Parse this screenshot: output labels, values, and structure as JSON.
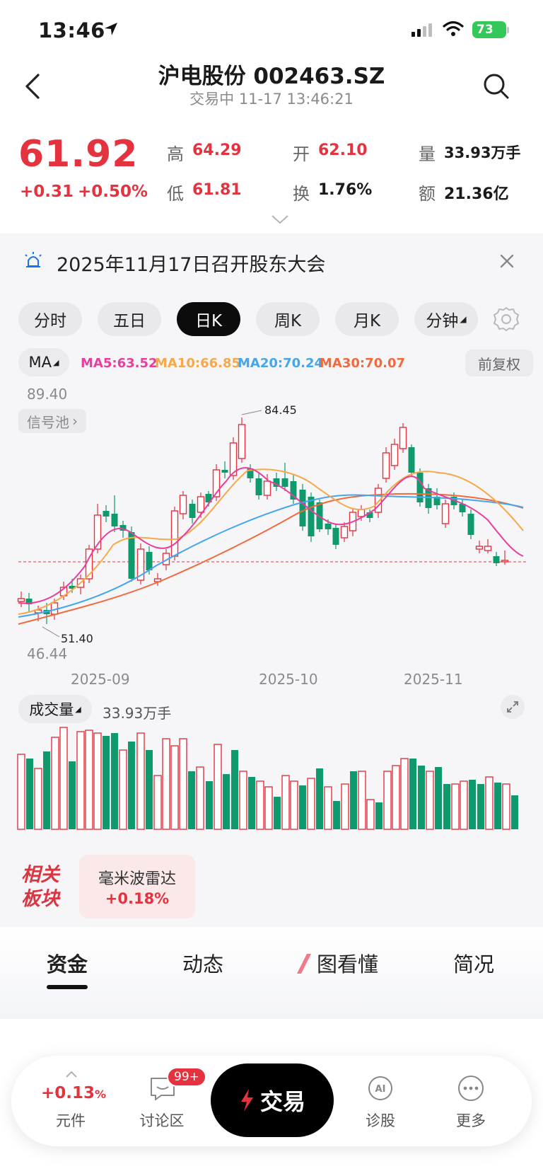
{
  "status_bar": {
    "time": "13:46",
    "battery": "73"
  },
  "header": {
    "title": "沪电股份 002463.SZ",
    "subtitle": "交易中 11-17 13:46:21"
  },
  "quote": {
    "price": "61.92",
    "change": "+0.31",
    "change_pct": "+0.50%",
    "high_label": "高",
    "high": "64.29",
    "open_label": "开",
    "open": "62.10",
    "volume_label": "量",
    "volume": "33.93万手",
    "low_label": "低",
    "low": "61.81",
    "turnover_label": "换",
    "turnover": "1.76%",
    "amount_label": "额",
    "amount": "21.36亿"
  },
  "notice": {
    "text": "2025年11月17日召开股东大会"
  },
  "period_tabs": [
    "分时",
    "五日",
    "日K",
    "周K",
    "月K",
    "分钟"
  ],
  "active_period": "日K",
  "ma": {
    "button": "MA",
    "ma5": "MA5:63.52",
    "ma10": "MA10:66.85",
    "ma20": "MA20:70.24",
    "ma30": "MA30:70.07",
    "adjust": "前复权",
    "colors": {
      "ma5": "#e83e9c",
      "ma10": "#f5a94a",
      "ma20": "#45a6ee",
      "ma30": "#f26a3c"
    }
  },
  "kline": {
    "y_max": "89.40",
    "y_min": "46.44",
    "high_mark": "84.45",
    "low_mark": "51.40",
    "signal_pool": "信号池",
    "x_labels": [
      "2025-09",
      "2025-10",
      "2025-11"
    ]
  },
  "volume": {
    "button": "成交量",
    "value": "33.93万手"
  },
  "related": {
    "logo_line1": "相关",
    "logo_line2": "板块",
    "sector_name": "毫米波雷达",
    "sector_change": "+0.18%"
  },
  "content_tabs": [
    "资金",
    "动态",
    "图看懂",
    "简况"
  ],
  "bottom_bar": {
    "index_change": "+0.13",
    "index_unit": "%",
    "index_label": "元件",
    "discuss_label": "讨论区",
    "discuss_badge": "99+",
    "trade_label": "交易",
    "diagnose_label": "诊股",
    "more_label": "更多"
  },
  "colors": {
    "up": "#e5323f",
    "down": "#0f9a6e"
  }
}
